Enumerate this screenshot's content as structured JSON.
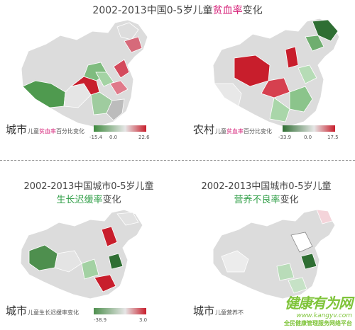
{
  "top": {
    "title_prefix": "2002-2013中国0-5岁儿童",
    "title_highlight": "贫血率",
    "title_suffix": "变化"
  },
  "panels": [
    {
      "id": "urban-anemia",
      "label": "城市",
      "sublabel_prefix": "儿童",
      "sublabel_highlight": "贫血率",
      "sublabel_suffix": "百分比变化",
      "legend_min": "-15.4",
      "legend_mid": "0.0",
      "legend_max": "22.6",
      "colors": {
        "neg": "#3f8a3f",
        "mid": "#e6e6e6",
        "pos": "#c81e2c"
      }
    },
    {
      "id": "rural-anemia",
      "label": "农村",
      "sublabel_prefix": "儿童",
      "sublabel_highlight": "贫血率",
      "sublabel_suffix": "百分比变化",
      "legend_min": "-33.9",
      "legend_mid": "0.0",
      "legend_max": "17.5",
      "colors": {
        "neg": "#2f6e33",
        "mid": "#e6e6e6",
        "pos": "#c81e2c"
      }
    },
    {
      "id": "urban-stunting",
      "title_line1": "2002-2013中国城市0-5岁儿童",
      "title_highlight": "生长迟缓率",
      "title_suffix": "变化",
      "label": "城市",
      "sublabel": "儿童生长迟缓率变化",
      "legend_min": "-38.9",
      "legend_max": "3.0",
      "colors": {
        "neg": "#4e8f4e",
        "mid": "#e6e6e6",
        "pos": "#c81e2c"
      }
    },
    {
      "id": "urban-malnutrition",
      "title_line1": "2002-2013中国城市0-5岁儿童",
      "title_highlight": "营养不良率",
      "title_suffix": "变化",
      "label": "城市",
      "sublabel": "儿童营养不",
      "colors": {
        "neg": "#3b7a3b",
        "mid": "#e6e6e6",
        "pos": "#c81e2c"
      }
    }
  ],
  "watermark": {
    "logo": "健康有为网",
    "url": "www.kangyv.com",
    "sub": "全民健康管理服务网络平台"
  }
}
